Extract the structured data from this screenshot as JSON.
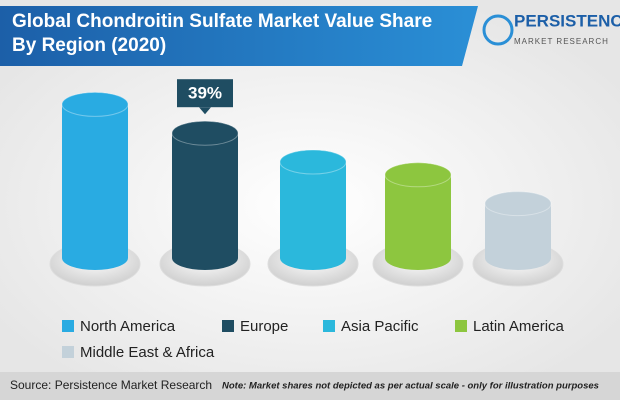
{
  "chart_data": {
    "type": "bar",
    "title": "Global Chondroitin Sulfate Market Value Share By Region (2020)",
    "logo": {
      "name": "PERSISTENCE",
      "subtitle": "MARKET RESEARCH"
    },
    "categories": [
      "North America",
      "Europe",
      "Asia Pacific",
      "Latin America",
      "Middle East & Africa"
    ],
    "values": [
      48,
      39,
      30,
      26,
      17
    ],
    "value_labels": [
      null,
      "39%",
      null,
      null,
      null
    ],
    "colors": [
      "#29abe2",
      "#1f4d62",
      "#2bb8dc",
      "#8dc63f",
      "#c3d1da"
    ],
    "source": "Source: Persistence Market Research",
    "note": "Note: Market shares not depicted as per actual scale - only for illustration purposes"
  }
}
